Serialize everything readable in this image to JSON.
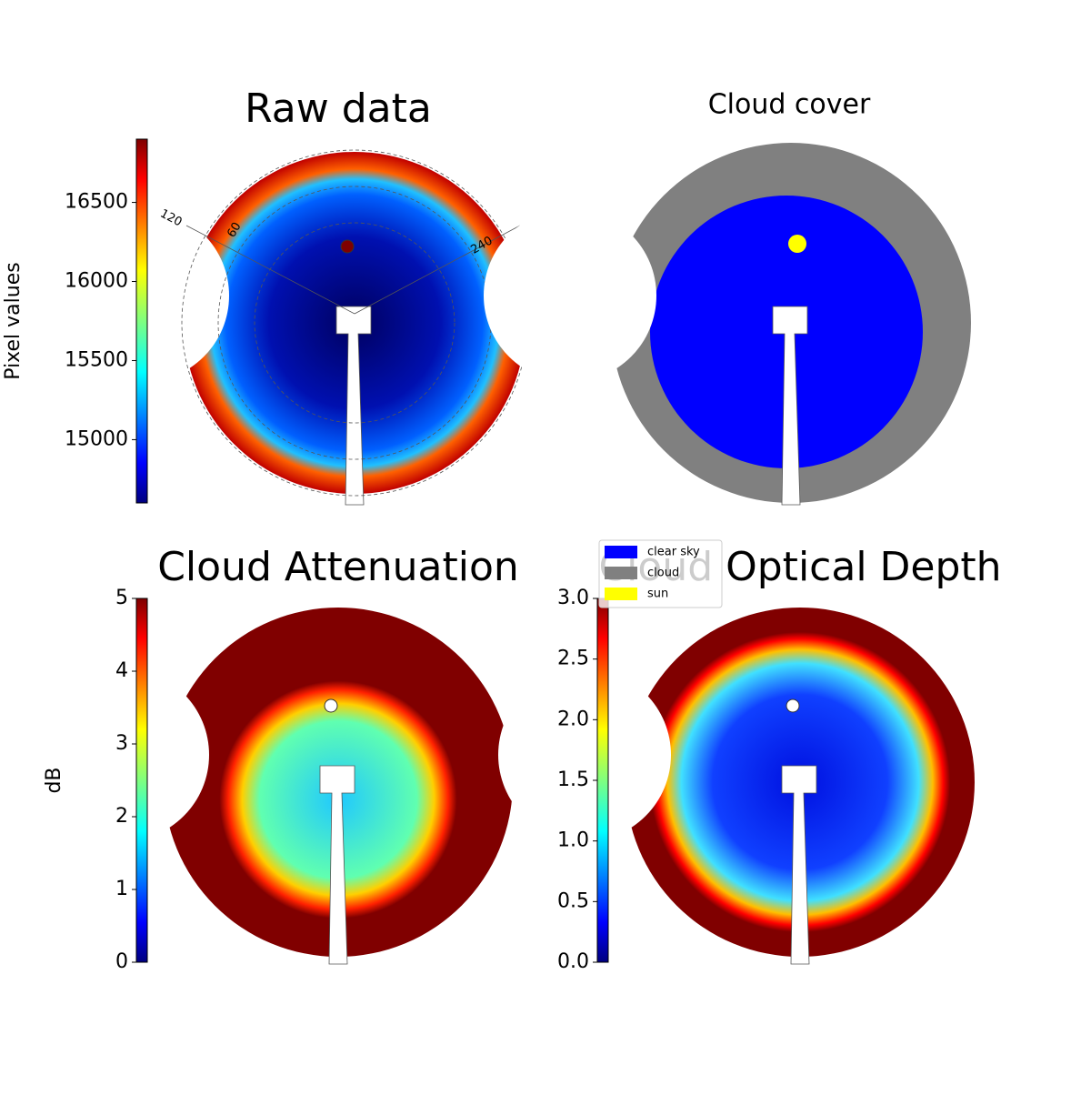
{
  "chart_data": [
    {
      "type": "image",
      "title": "Raw data",
      "colorbar": {
        "label": "Pixel values",
        "ylim": [
          14600,
          16900
        ],
        "yticks": [
          15000,
          15500,
          16000,
          16500
        ]
      },
      "polar_labels": [
        "120",
        "60",
        "240"
      ]
    },
    {
      "type": "image",
      "title": "Cloud cover",
      "series": [
        {
          "name": "clear sky",
          "color": "#0000ff"
        },
        {
          "name": "cloud",
          "color": "#808080"
        },
        {
          "name": "sun",
          "color": "#ffff00"
        }
      ]
    },
    {
      "type": "image",
      "title": "Cloud Attenuation",
      "colorbar": {
        "label": "dB",
        "ylim": [
          0,
          5
        ],
        "yticks": [
          0,
          1,
          2,
          3,
          4,
          5
        ]
      }
    },
    {
      "type": "image",
      "title": "Cloud Optical Depth",
      "colorbar": {
        "ylim": [
          0,
          3
        ],
        "yticks": [
          {
            "value": 0,
            "label": "0.0"
          },
          {
            "value": 0.5,
            "label": "0.5"
          },
          {
            "value": 1,
            "label": "1.0"
          },
          {
            "value": 1.5,
            "label": "1.5"
          },
          {
            "value": 2,
            "label": "2.0"
          },
          {
            "value": 2.5,
            "label": "2.5"
          },
          {
            "value": 3,
            "label": "3.0"
          }
        ]
      }
    }
  ]
}
